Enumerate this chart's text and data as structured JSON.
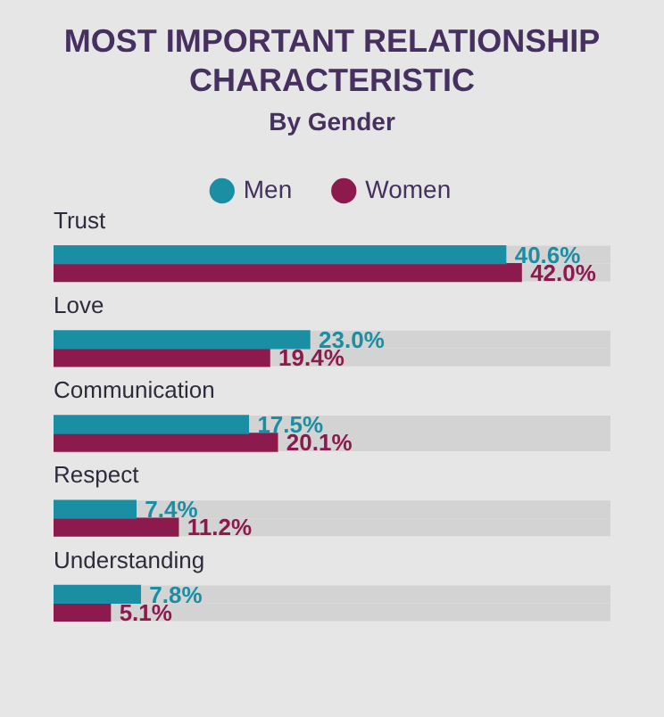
{
  "chart_data": {
    "type": "bar",
    "orientation": "horizontal",
    "title": "MOST IMPORTANT RELATIONSHIP CHARACTERISTIC",
    "subtitle": "By Gender",
    "categories": [
      "Trust",
      "Love",
      "Communication",
      "Respect",
      "Understanding"
    ],
    "series": [
      {
        "name": "Men",
        "color": "#1a8ea3",
        "values": [
          40.6,
          23.0,
          17.5,
          7.4,
          7.8
        ],
        "value_labels": [
          "40.6%",
          "23.0%",
          "17.5%",
          "7.4%",
          "7.8%"
        ]
      },
      {
        "name": "Women",
        "color": "#8c1a4c",
        "values": [
          42.0,
          19.4,
          20.1,
          11.2,
          5.1
        ],
        "value_labels": [
          "42.0%",
          "19.4%",
          "20.1%",
          "11.2%",
          "5.1%"
        ]
      }
    ],
    "tick_labels": false,
    "legend": "top"
  }
}
